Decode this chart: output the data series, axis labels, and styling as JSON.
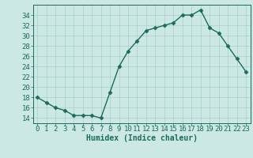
{
  "x": [
    0,
    1,
    2,
    3,
    4,
    5,
    6,
    7,
    8,
    9,
    10,
    11,
    12,
    13,
    14,
    15,
    16,
    17,
    18,
    19,
    20,
    21,
    22,
    23
  ],
  "y": [
    18,
    17,
    16,
    15.5,
    14.5,
    14.5,
    14.5,
    14,
    19,
    24,
    27,
    29,
    31,
    31.5,
    32,
    32.5,
    34,
    34,
    35,
    31.5,
    30.5,
    28,
    25.5,
    23
  ],
  "line_color": "#1a6b5a",
  "marker": "D",
  "markersize": 2.5,
  "linewidth": 1.0,
  "xlabel": "Humidex (Indice chaleur)",
  "xlabel_fontsize": 7,
  "ylim": [
    13,
    36
  ],
  "xlim": [
    -0.5,
    23.5
  ],
  "yticks": [
    14,
    16,
    18,
    20,
    22,
    24,
    26,
    28,
    30,
    32,
    34
  ],
  "xtick_labels": [
    "0",
    "1",
    "2",
    "3",
    "4",
    "5",
    "6",
    "7",
    "8",
    "9",
    "10",
    "11",
    "12",
    "13",
    "14",
    "15",
    "16",
    "17",
    "18",
    "19",
    "20",
    "21",
    "22",
    "23"
  ],
  "bg_color": "#cce8e5",
  "grid_color": "#aacfcc",
  "tick_color": "#1a6b5a",
  "tick_fontsize": 6.5
}
